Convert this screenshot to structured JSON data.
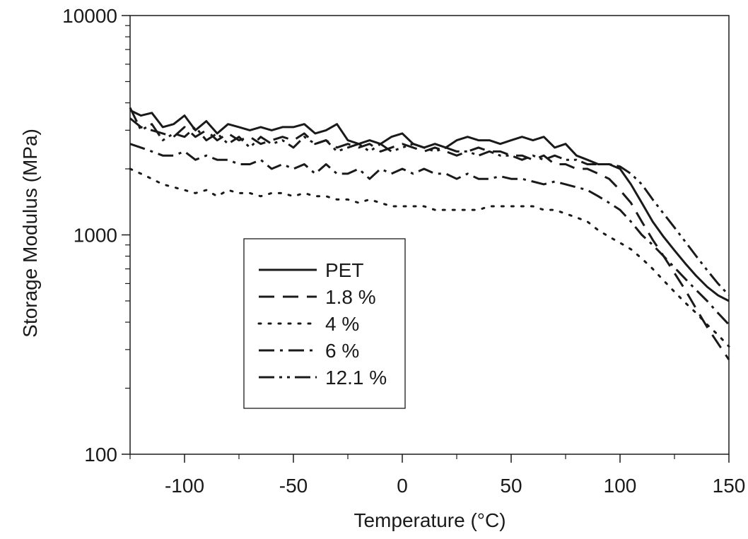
{
  "chart_data": {
    "type": "line",
    "xlabel": "Temperature (°C)",
    "ylabel": "Storage Modulus (MPa)",
    "xlim": [
      -125,
      150
    ],
    "ylim": [
      100,
      10000
    ],
    "yscale": "log",
    "grid": false,
    "legend_position": "center-left",
    "x_ticks": [
      -100,
      -50,
      0,
      50,
      100,
      150
    ],
    "x_tick_labels": [
      "-100",
      "-50",
      "0",
      "50",
      "100",
      "150"
    ],
    "y_ticks": [
      100,
      1000,
      10000
    ],
    "y_tick_labels": [
      "100",
      "1000",
      "10000"
    ],
    "series": [
      {
        "name": "PET",
        "dash": "solid",
        "x": [
          -125,
          -120,
          -115,
          -110,
          -105,
          -100,
          -95,
          -90,
          -85,
          -80,
          -75,
          -70,
          -65,
          -60,
          -55,
          -50,
          -45,
          -40,
          -35,
          -30,
          -25,
          -20,
          -15,
          -10,
          -5,
          0,
          5,
          10,
          15,
          20,
          25,
          30,
          35,
          40,
          45,
          50,
          55,
          60,
          65,
          70,
          75,
          80,
          85,
          90,
          95,
          100,
          105,
          110,
          115,
          120,
          125,
          130,
          135,
          140,
          145,
          150
        ],
        "y": [
          3700,
          3500,
          3600,
          3100,
          3200,
          3500,
          3000,
          3300,
          2900,
          3200,
          3100,
          3000,
          3100,
          3000,
          3100,
          3100,
          3200,
          2900,
          3000,
          3200,
          2700,
          2600,
          2700,
          2600,
          2800,
          2900,
          2600,
          2500,
          2600,
          2500,
          2700,
          2800,
          2700,
          2700,
          2600,
          2700,
          2800,
          2700,
          2800,
          2500,
          2600,
          2300,
          2200,
          2100,
          2100,
          2000,
          1700,
          1400,
          1150,
          980,
          850,
          740,
          650,
          580,
          530,
          500
        ]
      },
      {
        "name": "1.8 %",
        "dash": "dash",
        "x": [
          -125,
          -120,
          -115,
          -110,
          -105,
          -100,
          -95,
          -90,
          -85,
          -80,
          -75,
          -70,
          -65,
          -60,
          -55,
          -50,
          -45,
          -40,
          -35,
          -30,
          -25,
          -20,
          -15,
          -10,
          -5,
          0,
          5,
          10,
          15,
          20,
          25,
          30,
          35,
          40,
          45,
          50,
          55,
          60,
          65,
          70,
          75,
          80,
          85,
          90,
          95,
          100,
          105,
          110,
          115,
          120,
          125,
          130,
          135,
          140,
          145,
          150
        ],
        "y": [
          3400,
          3100,
          3000,
          2900,
          2800,
          3100,
          2800,
          3000,
          2700,
          2900,
          2700,
          2800,
          2600,
          2700,
          2800,
          2700,
          2900,
          2600,
          2700,
          2500,
          2600,
          2500,
          2600,
          2400,
          2500,
          2600,
          2500,
          2400,
          2500,
          2400,
          2300,
          2400,
          2500,
          2400,
          2400,
          2300,
          2300,
          2200,
          2300,
          2100,
          2100,
          2000,
          2000,
          1900,
          1800,
          1600,
          1400,
          1150,
          950,
          800,
          670,
          560,
          460,
          380,
          320,
          270
        ]
      },
      {
        "name": "4 %",
        "dash": "dot",
        "x": [
          -125,
          -120,
          -115,
          -110,
          -105,
          -100,
          -95,
          -90,
          -85,
          -80,
          -75,
          -70,
          -65,
          -60,
          -55,
          -50,
          -45,
          -40,
          -35,
          -30,
          -25,
          -20,
          -15,
          -10,
          -5,
          0,
          5,
          10,
          15,
          20,
          25,
          30,
          35,
          40,
          45,
          50,
          55,
          60,
          65,
          70,
          75,
          80,
          85,
          90,
          95,
          100,
          105,
          110,
          115,
          120,
          125,
          130,
          135,
          140,
          145,
          150
        ],
        "y": [
          2000,
          1900,
          1800,
          1700,
          1650,
          1600,
          1550,
          1600,
          1500,
          1600,
          1550,
          1550,
          1500,
          1550,
          1550,
          1500,
          1550,
          1500,
          1500,
          1450,
          1450,
          1400,
          1450,
          1400,
          1350,
          1350,
          1350,
          1350,
          1300,
          1300,
          1300,
          1300,
          1300,
          1350,
          1350,
          1350,
          1350,
          1350,
          1300,
          1300,
          1250,
          1200,
          1150,
          1050,
          980,
          920,
          860,
          780,
          700,
          620,
          550,
          490,
          440,
          390,
          350,
          310
        ]
      },
      {
        "name": "6 %",
        "dash": "dashdot",
        "x": [
          -125,
          -120,
          -115,
          -110,
          -105,
          -100,
          -95,
          -90,
          -85,
          -80,
          -75,
          -70,
          -65,
          -60,
          -55,
          -50,
          -45,
          -40,
          -35,
          -30,
          -25,
          -20,
          -15,
          -10,
          -5,
          0,
          5,
          10,
          15,
          20,
          25,
          30,
          35,
          40,
          45,
          50,
          55,
          60,
          65,
          70,
          75,
          80,
          85,
          90,
          95,
          100,
          105,
          110,
          115,
          120,
          125,
          130,
          135,
          140,
          145,
          150
        ],
        "y": [
          2600,
          2500,
          2400,
          2300,
          2300,
          2400,
          2200,
          2300,
          2200,
          2200,
          2100,
          2100,
          2200,
          2000,
          2100,
          2000,
          2100,
          1900,
          2100,
          1900,
          1900,
          2000,
          1800,
          2000,
          1900,
          2000,
          1900,
          2000,
          1900,
          1900,
          1800,
          1900,
          1800,
          1800,
          1850,
          1800,
          1800,
          1750,
          1700,
          1750,
          1700,
          1650,
          1600,
          1500,
          1400,
          1300,
          1150,
          1000,
          900,
          800,
          710,
          630,
          560,
          500,
          440,
          390
        ]
      },
      {
        "name": "12.1 %",
        "dash": "dashdotdot",
        "x": [
          -125,
          -120,
          -115,
          -110,
          -105,
          -100,
          -95,
          -90,
          -85,
          -80,
          -75,
          -70,
          -65,
          -60,
          -55,
          -50,
          -45,
          -40,
          -35,
          -30,
          -25,
          -20,
          -15,
          -10,
          -5,
          0,
          5,
          10,
          15,
          20,
          25,
          30,
          35,
          40,
          45,
          50,
          55,
          60,
          65,
          70,
          75,
          80,
          85,
          90,
          95,
          100,
          105,
          110,
          115,
          120,
          125,
          130,
          135,
          140,
          145,
          150
        ],
        "y": [
          3800,
          3000,
          3200,
          2700,
          2900,
          2800,
          3100,
          2700,
          2900,
          2600,
          2800,
          2500,
          2800,
          2600,
          2700,
          2500,
          2800,
          2600,
          2700,
          2400,
          2500,
          2600,
          2400,
          2600,
          2400,
          2500,
          2600,
          2500,
          2400,
          2500,
          2400,
          2400,
          2300,
          2400,
          2300,
          2300,
          2200,
          2300,
          2200,
          2300,
          2200,
          2200,
          2100,
          2100,
          2100,
          2050,
          1900,
          1700,
          1450,
          1250,
          1080,
          930,
          800,
          690,
          600,
          530
        ]
      }
    ]
  }
}
